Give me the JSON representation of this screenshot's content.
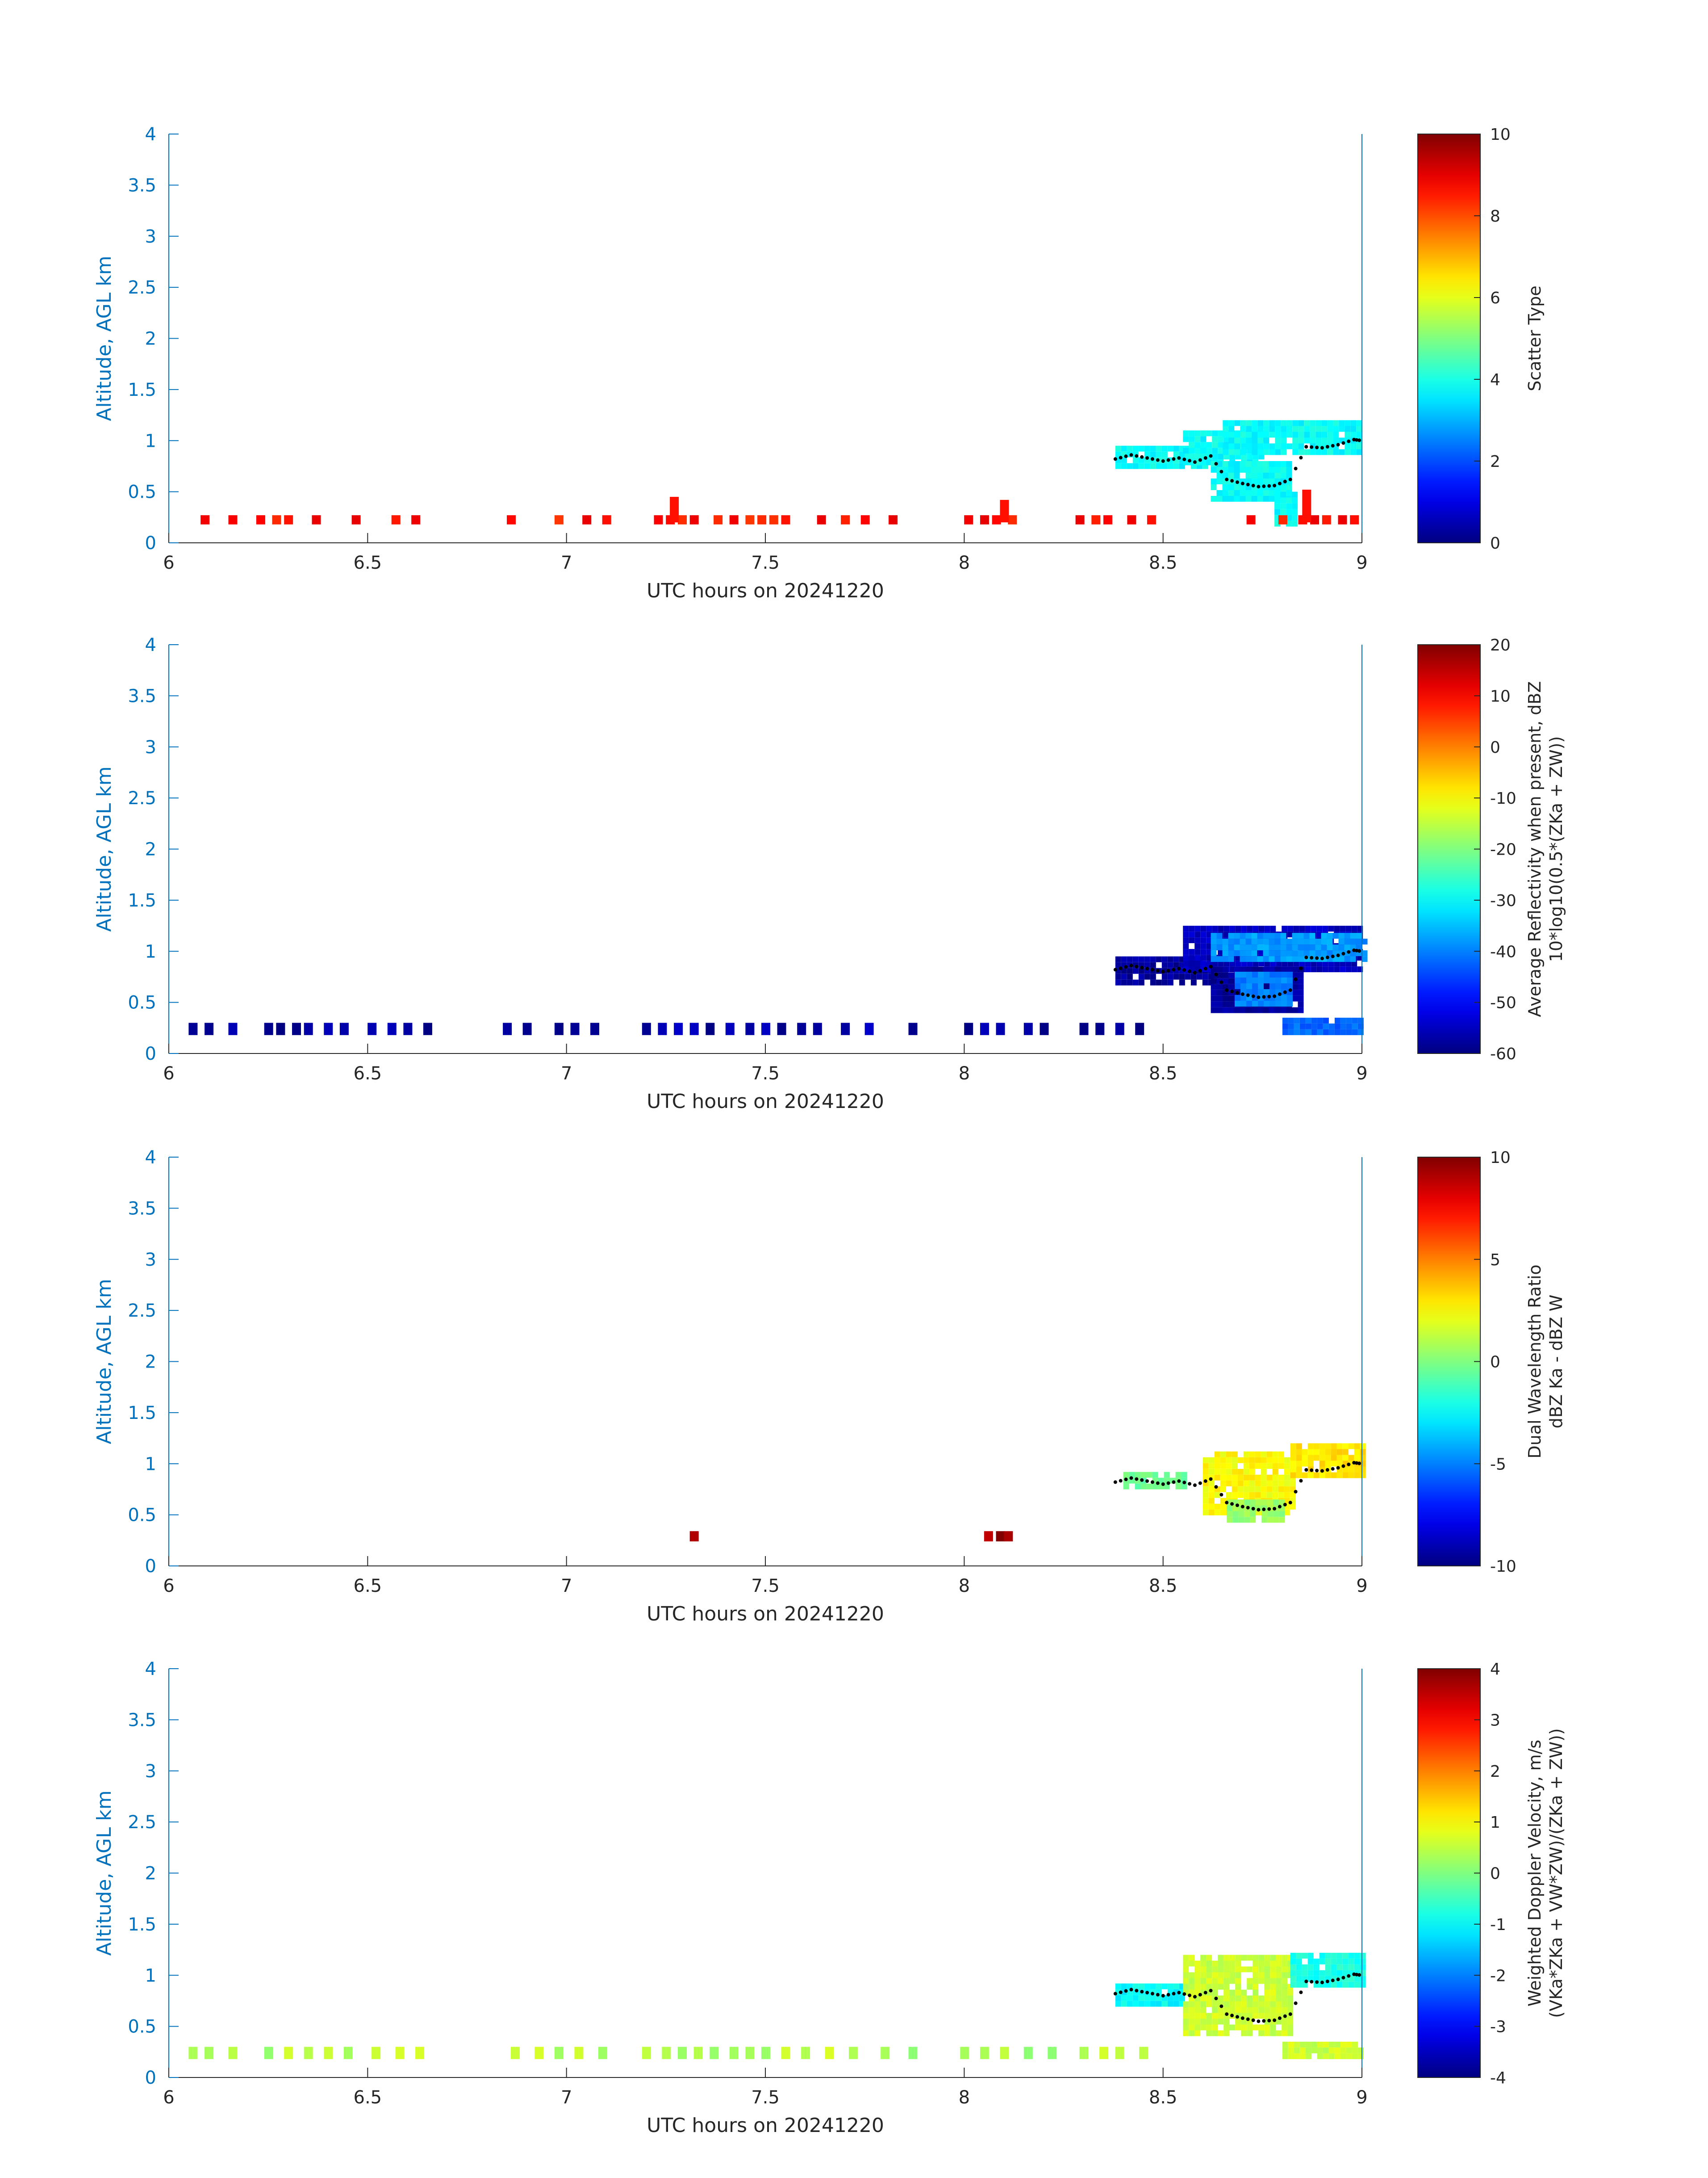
{
  "chart_data": [
    {
      "type": "heatmap",
      "colorbar": {
        "label": "Scatter Type",
        "label2": "",
        "ticks": [
          "10",
          "8",
          "6",
          "4",
          "2",
          "0"
        ],
        "range": [
          0,
          10
        ],
        "colormap": "jet"
      },
      "xlabel": "UTC hours on 20241220",
      "ylabel": "Altitude, AGL km",
      "xlim": [
        6,
        9
      ],
      "ylim": [
        0,
        4
      ],
      "xticks": [
        "6",
        "6.5",
        "7",
        "7.5",
        "8",
        "8.5",
        "9"
      ],
      "yticks": [
        "0",
        "0.5",
        "1",
        "1.5",
        "2",
        "2.5",
        "3",
        "3.5",
        "4"
      ],
      "regions": [
        {
          "x": [
            8.38,
            8.6
          ],
          "y": [
            0.75,
            0.95
          ],
          "value": 3.8
        },
        {
          "x": [
            8.55,
            8.75
          ],
          "y": [
            0.8,
            1.1
          ],
          "value": 3.8
        },
        {
          "x": [
            8.65,
            9.0
          ],
          "y": [
            0.9,
            1.2
          ],
          "value": 3.8
        },
        {
          "x": [
            8.62,
            8.82
          ],
          "y": [
            0.45,
            0.8
          ],
          "value": 3.8
        },
        {
          "x": [
            8.78,
            8.83
          ],
          "y": [
            0.18,
            0.5
          ],
          "value": 3.8
        }
      ],
      "low_cells": {
        "y": [
          0.18,
          0.27
        ],
        "value": 8.6,
        "x": [
          6.09,
          6.16,
          6.23,
          6.27,
          6.3,
          6.37,
          6.47,
          6.57,
          6.62,
          6.86,
          6.98,
          7.05,
          7.1,
          7.23,
          7.26,
          7.29,
          7.32,
          7.38,
          7.42,
          7.46,
          7.49,
          7.52,
          7.55,
          7.64,
          7.7,
          7.75,
          7.82,
          8.01,
          8.05,
          8.08,
          8.12,
          8.29,
          8.33,
          8.36,
          8.42,
          8.47,
          8.72,
          8.8,
          8.85,
          8.88,
          8.91,
          8.95,
          8.98
        ]
      },
      "spikes": [
        {
          "x": 7.27,
          "y": 0.45,
          "value": 8.6
        },
        {
          "x": 8.1,
          "y": 0.42,
          "value": 8.6
        },
        {
          "x": 8.86,
          "y": 0.52,
          "value": 8.6
        }
      ],
      "dotted_line": {
        "x": [
          8.38,
          8.42,
          8.46,
          8.5,
          8.54,
          8.58,
          8.62,
          8.66,
          8.7,
          8.74,
          8.78,
          8.82,
          8.86,
          8.9,
          8.94,
          8.98,
          9.0
        ],
        "y": [
          0.82,
          0.86,
          0.83,
          0.8,
          0.83,
          0.79,
          0.85,
          0.62,
          0.58,
          0.55,
          0.56,
          0.62,
          0.94,
          0.93,
          0.96,
          1.01,
          1.0
        ]
      }
    },
    {
      "type": "heatmap",
      "colorbar": {
        "label": "Average Reflectivity when present, dBZ",
        "label2": "10*log10(0.5*(ZKa + ZW))",
        "ticks": [
          "20",
          "10",
          "0",
          "-10",
          "-20",
          "-30",
          "-40",
          "-50",
          "-60"
        ],
        "range": [
          -60,
          20
        ],
        "colormap": "jet"
      },
      "xlabel": "UTC hours on 20241220",
      "ylabel": "Altitude, AGL km",
      "xlim": [
        6,
        9
      ],
      "ylim": [
        0,
        4
      ],
      "xticks": [
        "6",
        "6.5",
        "7",
        "7.5",
        "8",
        "8.5",
        "9"
      ],
      "yticks": [
        "0",
        "0.5",
        "1",
        "1.5",
        "2",
        "2.5",
        "3",
        "3.5",
        "4"
      ],
      "regions": [
        {
          "x": [
            8.38,
            8.62
          ],
          "y": [
            0.72,
            0.95
          ],
          "value": -58
        },
        {
          "x": [
            8.55,
            9.0
          ],
          "y": [
            0.85,
            1.25
          ],
          "value": -55
        },
        {
          "x": [
            8.62,
            9.0
          ],
          "y": [
            0.9,
            1.18
          ],
          "value": -38
        },
        {
          "x": [
            8.62,
            8.85
          ],
          "y": [
            0.4,
            0.85
          ],
          "value": -58
        },
        {
          "x": [
            8.68,
            8.82
          ],
          "y": [
            0.5,
            0.8
          ],
          "value": -40
        },
        {
          "x": [
            8.8,
            9.0
          ],
          "y": [
            0.18,
            0.35
          ],
          "value": -42
        }
      ],
      "low_cells": {
        "y": [
          0.18,
          0.3
        ],
        "value": -57,
        "x": [
          6.06,
          6.1,
          6.16,
          6.25,
          6.28,
          6.32,
          6.35,
          6.4,
          6.44,
          6.51,
          6.56,
          6.6,
          6.65,
          6.85,
          6.9,
          6.98,
          7.02,
          7.07,
          7.2,
          7.24,
          7.28,
          7.32,
          7.36,
          7.41,
          7.46,
          7.5,
          7.54,
          7.59,
          7.63,
          7.7,
          7.76,
          7.87,
          8.01,
          8.05,
          8.09,
          8.16,
          8.2,
          8.3,
          8.34,
          8.39,
          8.44
        ]
      },
      "dotted_line": {
        "x": [
          8.38,
          8.42,
          8.46,
          8.5,
          8.54,
          8.58,
          8.62,
          8.66,
          8.7,
          8.74,
          8.78,
          8.82,
          8.86,
          8.9,
          8.94,
          8.98,
          9.0
        ],
        "y": [
          0.82,
          0.86,
          0.83,
          0.8,
          0.83,
          0.79,
          0.85,
          0.62,
          0.58,
          0.55,
          0.56,
          0.62,
          0.94,
          0.93,
          0.96,
          1.01,
          1.0
        ]
      }
    },
    {
      "type": "heatmap",
      "colorbar": {
        "label": "Dual Wavelength Ratio",
        "label2": "dBZ Ka - dBZ W",
        "ticks": [
          "10",
          "5",
          "0",
          "-5",
          "-10"
        ],
        "range": [
          -10,
          10
        ],
        "colormap": "jet"
      },
      "xlabel": "UTC hours on 20241220",
      "ylabel": "Altitude, AGL km",
      "xlim": [
        6,
        9
      ],
      "ylim": [
        0,
        4
      ],
      "xticks": [
        "6",
        "6.5",
        "7",
        "7.5",
        "8",
        "8.5",
        "9"
      ],
      "yticks": [
        "0",
        "0.5",
        "1",
        "1.5",
        "2",
        "2.5",
        "3",
        "3.5",
        "4"
      ],
      "regions": [
        {
          "x": [
            8.4,
            8.56
          ],
          "y": [
            0.75,
            0.92
          ],
          "value": -0.5
        },
        {
          "x": [
            8.6,
            8.82
          ],
          "y": [
            0.5,
            1.12
          ],
          "value": 2.5
        },
        {
          "x": [
            8.82,
            9.0
          ],
          "y": [
            0.9,
            1.2
          ],
          "value": 3.0
        },
        {
          "x": [
            8.66,
            8.8
          ],
          "y": [
            0.45,
            0.65
          ],
          "value": 0.5
        }
      ],
      "low_cells": {
        "y": [
          0.24,
          0.34
        ],
        "value": 9.5,
        "x": [
          7.32,
          8.06,
          8.09,
          8.11
        ]
      },
      "dotted_line": {
        "x": [
          8.38,
          8.42,
          8.46,
          8.5,
          8.54,
          8.58,
          8.62,
          8.66,
          8.7,
          8.74,
          8.78,
          8.82,
          8.86,
          8.9,
          8.94,
          8.98,
          9.0
        ],
        "y": [
          0.82,
          0.86,
          0.83,
          0.8,
          0.83,
          0.79,
          0.85,
          0.62,
          0.58,
          0.55,
          0.56,
          0.62,
          0.94,
          0.93,
          0.96,
          1.01,
          1.0
        ]
      }
    },
    {
      "type": "heatmap",
      "colorbar": {
        "label": "Weighted Doppler Velocity, m/s",
        "label2": "(VKa*ZKa + VW*ZW)/(ZKa + ZW))",
        "ticks": [
          "4",
          "3",
          "2",
          "1",
          "0",
          "-1",
          "-2",
          "-3",
          "-4"
        ],
        "range": [
          -4,
          4
        ],
        "colormap": "jet"
      },
      "xlabel": "UTC hours on 20241220",
      "ylabel": "Altitude, AGL km",
      "xlim": [
        6,
        9
      ],
      "ylim": [
        0,
        4
      ],
      "xticks": [
        "6",
        "6.5",
        "7",
        "7.5",
        "8",
        "8.5",
        "9"
      ],
      "yticks": [
        "0",
        "0.5",
        "1",
        "1.5",
        "2",
        "2.5",
        "3",
        "3.5",
        "4"
      ],
      "regions": [
        {
          "x": [
            8.38,
            8.55
          ],
          "y": [
            0.72,
            0.92
          ],
          "value": -1.0
        },
        {
          "x": [
            8.55,
            8.82
          ],
          "y": [
            0.45,
            1.2
          ],
          "value": 0.6
        },
        {
          "x": [
            8.82,
            9.0
          ],
          "y": [
            0.9,
            1.22
          ],
          "value": -0.8
        },
        {
          "x": [
            8.8,
            9.0
          ],
          "y": [
            0.18,
            0.35
          ],
          "value": 0.6
        }
      ],
      "low_cells": {
        "y": [
          0.18,
          0.3
        ],
        "value": 0.4,
        "x": [
          6.06,
          6.1,
          6.16,
          6.25,
          6.3,
          6.35,
          6.4,
          6.45,
          6.52,
          6.58,
          6.63,
          6.87,
          6.93,
          6.98,
          7.03,
          7.09,
          7.2,
          7.25,
          7.29,
          7.33,
          7.37,
          7.42,
          7.46,
          7.5,
          7.55,
          7.6,
          7.66,
          7.72,
          7.8,
          7.87,
          8.0,
          8.05,
          8.1,
          8.16,
          8.22,
          8.3,
          8.35,
          8.39,
          8.45
        ]
      },
      "dotted_line": {
        "x": [
          8.38,
          8.42,
          8.46,
          8.5,
          8.54,
          8.58,
          8.62,
          8.66,
          8.7,
          8.74,
          8.78,
          8.82,
          8.86,
          8.9,
          8.94,
          8.98,
          9.0
        ],
        "y": [
          0.82,
          0.86,
          0.83,
          0.8,
          0.83,
          0.79,
          0.85,
          0.62,
          0.58,
          0.55,
          0.56,
          0.62,
          0.94,
          0.93,
          0.96,
          1.01,
          1.0
        ]
      }
    }
  ]
}
